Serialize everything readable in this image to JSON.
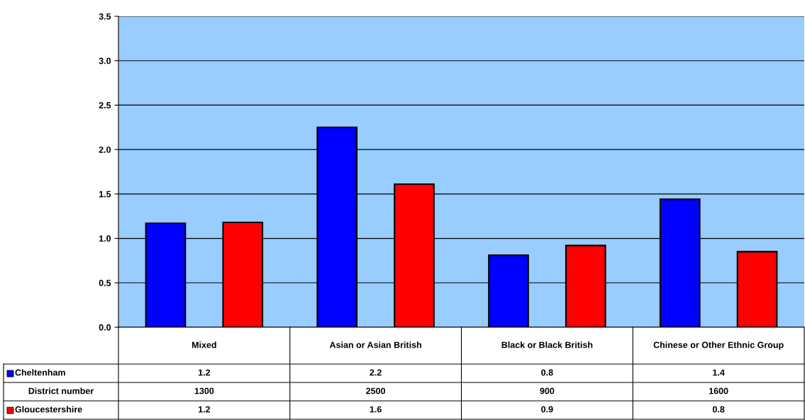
{
  "chart_data": {
    "type": "bar",
    "categories": [
      "Mixed",
      "Asian or Asian British",
      "Black or Black British",
      "Chinese or Other Ethnic Group"
    ],
    "series": [
      {
        "name": "Cheltenham",
        "color": "#0000ff",
        "values": [
          1.17,
          2.25,
          0.81,
          1.44
        ],
        "value_labels": [
          "1.2",
          "2.2",
          "0.8",
          "1.4"
        ]
      },
      {
        "name": "Gloucestershire",
        "color": "#ff0000",
        "values": [
          1.18,
          1.61,
          0.92,
          0.85
        ],
        "value_labels": [
          "1.2",
          "1.6",
          "0.9",
          "0.8"
        ]
      }
    ],
    "annotations": [
      "District number",
      "1300",
      "2500",
      "900",
      "1600"
    ],
    "ylim": [
      0,
      3.5
    ],
    "yticks": [
      {
        "value": 0,
        "label": "0.0"
      },
      {
        "value": 0.5,
        "label": "0.5"
      },
      {
        "value": 1,
        "label": "1.0"
      },
      {
        "value": 1.5,
        "label": "1.5"
      },
      {
        "value": 2,
        "label": "2.0"
      },
      {
        "value": 2.5,
        "label": "2.5"
      },
      {
        "value": 3,
        "label": "3.0"
      },
      {
        "value": 3.5,
        "label": "3.5"
      }
    ],
    "grid": "y",
    "legend": "bottom left"
  }
}
